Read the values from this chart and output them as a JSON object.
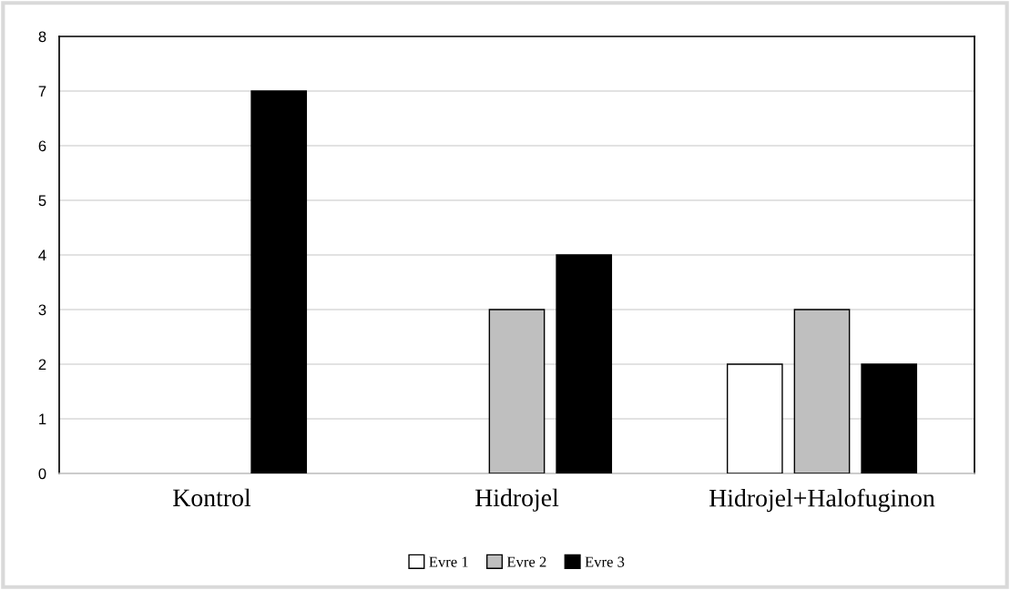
{
  "chart_data": {
    "type": "bar",
    "categories": [
      "Kontrol",
      "Hidrojel",
      "Hidrojel+Halofuginon"
    ],
    "series": [
      {
        "name": "Evre 1",
        "color": "#ffffff",
        "values": [
          0,
          0,
          2
        ]
      },
      {
        "name": "Evre 2",
        "color": "#bfbfbf",
        "values": [
          0,
          3,
          3
        ]
      },
      {
        "name": "Evre 3",
        "color": "#000000",
        "values": [
          7,
          4,
          2
        ]
      }
    ],
    "ylim": [
      0,
      8
    ],
    "yticks": [
      0,
      1,
      2,
      3,
      4,
      5,
      6,
      7,
      8
    ],
    "grid": "y",
    "legend": "bottom"
  }
}
